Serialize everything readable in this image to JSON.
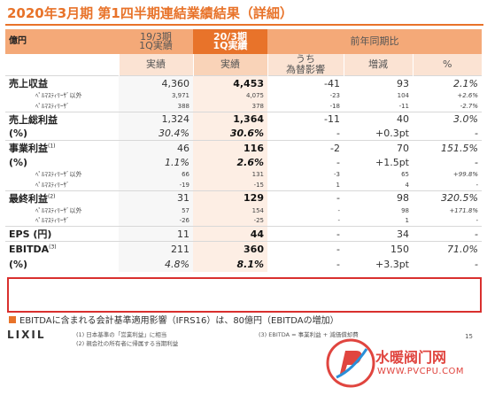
{
  "title": "2020年3月期 第1四半期連結業績結果（詳細）",
  "header": {
    "unit": "億円",
    "prev_period": "19/3期\n1Q実績",
    "cur_period": "20/3期\n1Q実績",
    "delta_group": "前年同期比"
  },
  "subheader": {
    "prev": "実績",
    "cur": "実績",
    "fx": "うち\n為替影響",
    "change": "増減",
    "pct": "%"
  },
  "rows": [
    {
      "label": "売上収益",
      "prev": "4,360",
      "cur": "4,453",
      "fx": "-41",
      "chg": "93",
      "pct": "2.1%",
      "type": "main"
    },
    {
      "label": "ﾍﾟﾙﾏｽﾃｨﾘｰｻﾞ以外",
      "prev": "3,971",
      "cur": "4,075",
      "fx": "-23",
      "chg": "104",
      "pct": "+2.6%",
      "type": "small"
    },
    {
      "label": "ﾍﾟﾙﾏｽﾃｨﾘｰｻﾞ",
      "prev": "388",
      "cur": "378",
      "fx": "-18",
      "chg": "-11",
      "pct": "-2.7%",
      "type": "small"
    },
    {
      "label": "売上総利益",
      "prev": "1,324",
      "cur": "1,364",
      "fx": "-11",
      "chg": "40",
      "pct": "3.0%",
      "type": "main"
    },
    {
      "label": "(%)",
      "prev": "30.4%",
      "cur": "30.6%",
      "fx": "-",
      "chg": "+0.3pt",
      "pct": "-",
      "type": "ratio"
    },
    {
      "label": "事業利益",
      "sup": "(1)",
      "prev": "46",
      "cur": "116",
      "fx": "-2",
      "chg": "70",
      "pct": "151.5%",
      "type": "main"
    },
    {
      "label": "(%)",
      "prev": "1.1%",
      "cur": "2.6%",
      "fx": "-",
      "chg": "+1.5pt",
      "pct": "-",
      "type": "ratio"
    },
    {
      "label": "ﾍﾟﾙﾏｽﾃｨﾘｰｻﾞ以外",
      "prev": "66",
      "cur": "131",
      "fx": "-3",
      "chg": "65",
      "pct": "+99.8%",
      "type": "small"
    },
    {
      "label": "ﾍﾟﾙﾏｽﾃｨﾘｰｻﾞ",
      "prev": "-19",
      "cur": "-15",
      "fx": "1",
      "chg": "4",
      "pct": "-",
      "type": "small"
    },
    {
      "label": "最終利益",
      "sup": "(2)",
      "prev": "31",
      "cur": "129",
      "fx": "-",
      "chg": "98",
      "pct": "320.5%",
      "type": "main"
    },
    {
      "label": "ﾍﾟﾙﾏｽﾃｨﾘｰｻﾞ以外",
      "prev": "57",
      "cur": "154",
      "fx": "-",
      "chg": "98",
      "pct": "+171.8%",
      "type": "small"
    },
    {
      "label": "ﾍﾟﾙﾏｽﾃｨﾘｰｻﾞ",
      "prev": "-26",
      "cur": "-25",
      "fx": "-",
      "chg": "1",
      "pct": "-",
      "type": "small"
    },
    {
      "label": "EPS (円)",
      "prev": "11",
      "cur": "44",
      "fx": "-",
      "chg": "34",
      "pct": "-",
      "type": "main"
    },
    {
      "label": "EBITDA",
      "sup": "(3)",
      "prev": "211",
      "cur": "360",
      "fx": "-",
      "chg": "150",
      "pct": "71.0%",
      "type": "ebitda"
    },
    {
      "label": "(%)",
      "prev": "4.8%",
      "cur": "8.1%",
      "fx": "-",
      "chg": "+3.3pt",
      "pct": "-",
      "type": "ebitda-ratio"
    }
  ],
  "note": "EBITDAに含まれる会計基準適用影響（IFRS16）は、80億円（EBITDAの増加）",
  "footnotes": {
    "f1": "(1) 日本基準の「営業利益」に相当",
    "f2": "(2) 親会社の所有者に帰属する当期利益",
    "f3": "(3) EBITDA = 事業利益 + 減価償却費"
  },
  "logo": "LIXIL",
  "page_number": "15",
  "watermark": {
    "text": "水暖阀门网",
    "url": "WWW.PVCPU.COM"
  },
  "colors": {
    "accent": "#e8732a",
    "header_light": "#f4a978",
    "highlight_box": "#d9302e",
    "watermark": "#e0453f"
  }
}
